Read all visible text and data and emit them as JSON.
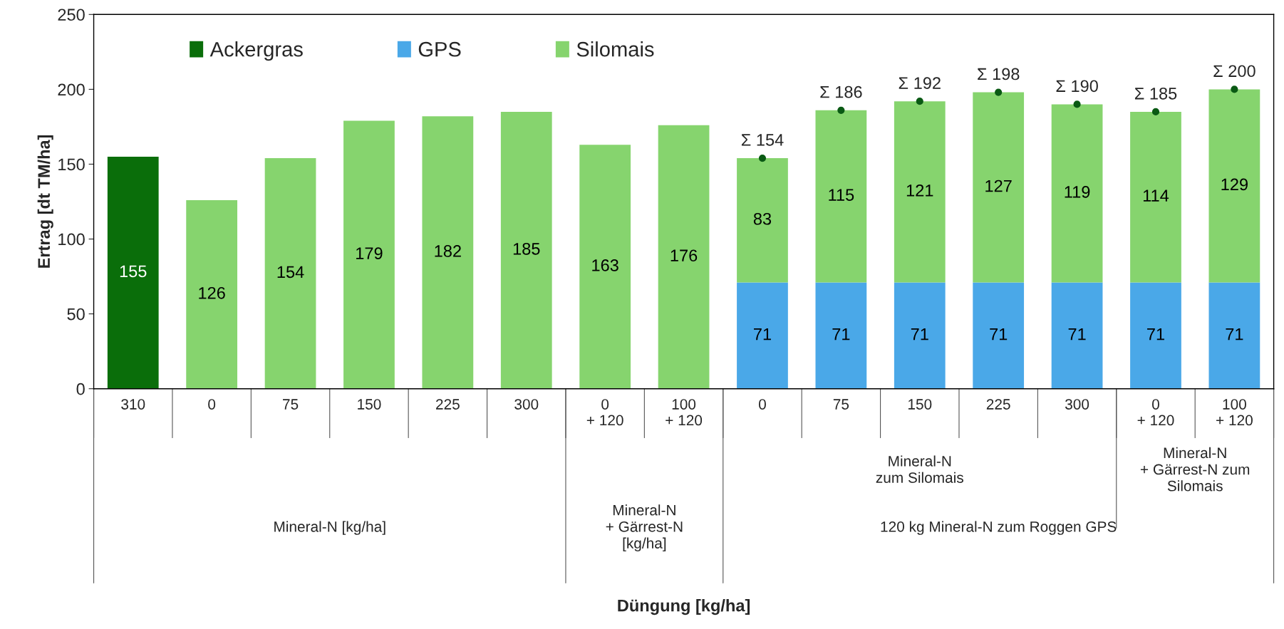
{
  "chart_data": {
    "type": "bar",
    "stacked": true,
    "ylabel": "Ertrag [dt TM/ha]",
    "categories": [
      "310",
      "0",
      "75",
      "150",
      "225",
      "300",
      "0\n+ 120",
      "100\n+ 120",
      "0",
      "75",
      "150",
      "225",
      "300",
      "0\n+ 120",
      "100\n+ 120"
    ],
    "series": [
      {
        "name": "Ackergras",
        "color": "#0a6e0a",
        "values": [
          155,
          null,
          null,
          null,
          null,
          null,
          null,
          null,
          null,
          null,
          null,
          null,
          null,
          null,
          null
        ]
      },
      {
        "name": "GPS",
        "color": "#4aa8e8",
        "values": [
          null,
          null,
          null,
          null,
          null,
          null,
          null,
          null,
          71,
          71,
          71,
          71,
          71,
          71,
          71
        ]
      },
      {
        "name": "Silomais",
        "color": "#86d46e",
        "values": [
          null,
          126,
          154,
          179,
          182,
          185,
          163,
          176,
          83,
          115,
          121,
          127,
          119,
          114,
          129
        ]
      },
      {
        "type": "scatter",
        "color": "#0a5a14",
        "marker": "circle",
        "values": [
          null,
          null,
          null,
          null,
          null,
          null,
          null,
          null,
          154,
          186,
          192,
          198,
          190,
          185,
          200
        ],
        "value_labels": [
          null,
          null,
          null,
          null,
          null,
          null,
          null,
          null,
          "Σ 154",
          "Σ 186",
          "Σ 192",
          "Σ 198",
          "Σ 190",
          "Σ 185",
          "Σ 200"
        ]
      }
    ],
    "data_labels": true,
    "ylim": [
      0,
      250
    ],
    "yticks": [
      0,
      50,
      100,
      150,
      200,
      250
    ],
    "grid": false,
    "legend": "top left",
    "annotations": [
      "Mineral-N [kg/ha]",
      "Mineral-N\n+ Gärrest-N\n[kg/ha]",
      "Mineral-N\nzum Silomais",
      "Mineral-N\n+ Gärrest-N zum\nSilomais",
      "120 kg Mineral-N zum Roggen GPS",
      "Düngung [kg/ha]"
    ]
  }
}
